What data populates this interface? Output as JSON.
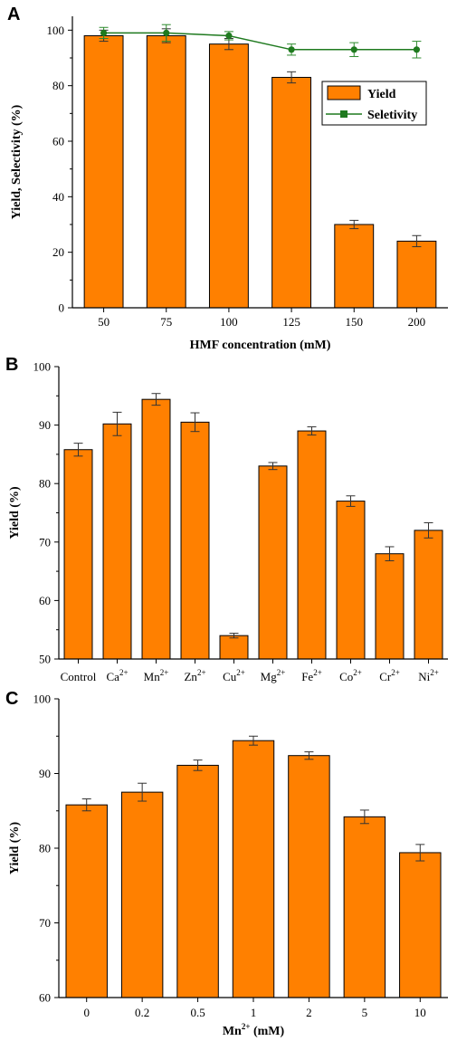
{
  "colors": {
    "bar_fill": "#ff8000",
    "bar_stroke": "#000000",
    "line": "#1f7a1f",
    "error_bar": "#333333",
    "line_error_bar": "#2e8b2e"
  },
  "chart_data": [
    {
      "panel_label": "A",
      "type": "bar",
      "categories": [
        "50",
        "75",
        "100",
        "125",
        "150",
        "200"
      ],
      "series": [
        {
          "name": "Yield",
          "type": "bar",
          "values": [
            98,
            98,
            95,
            83,
            30,
            24
          ],
          "errors": [
            2,
            2.5,
            2,
            2,
            1.5,
            2
          ]
        },
        {
          "name": "Seletivity",
          "type": "line",
          "values": [
            99,
            99,
            98,
            93,
            93,
            93
          ],
          "errors": [
            2,
            3,
            1.5,
            2,
            2.5,
            3
          ]
        }
      ],
      "xlabel": "HMF concentration (mM)",
      "ylabel": "Yield, Selectivity (%)",
      "ylim": [
        0,
        105
      ],
      "yticks": [
        0,
        20,
        40,
        60,
        80,
        100
      ],
      "legend": "right"
    },
    {
      "panel_label": "B",
      "type": "bar",
      "categories": [
        {
          "base": "Control",
          "sup": ""
        },
        {
          "base": "Ca",
          "sup": "2+"
        },
        {
          "base": "Mn",
          "sup": "2+"
        },
        {
          "base": "Zn",
          "sup": "2+"
        },
        {
          "base": "Cu",
          "sup": "2+"
        },
        {
          "base": "Mg",
          "sup": "2+"
        },
        {
          "base": "Fe",
          "sup": "2+"
        },
        {
          "base": "Co",
          "sup": "2+"
        },
        {
          "base": "Cr",
          "sup": "2+"
        },
        {
          "base": "Ni",
          "sup": "2+"
        }
      ],
      "series": [
        {
          "type": "bar",
          "values": [
            85.8,
            90.2,
            94.4,
            90.5,
            54.0,
            83.0,
            89.0,
            77.0,
            68.0,
            72.0
          ],
          "errors": [
            1.1,
            2.0,
            1.0,
            1.6,
            0.4,
            0.6,
            0.7,
            0.9,
            1.2,
            1.3
          ]
        }
      ],
      "xlabel": "",
      "ylabel": "Yield (%)",
      "ylim": [
        50,
        100
      ],
      "yticks": [
        50,
        60,
        70,
        80,
        90,
        100
      ]
    },
    {
      "panel_label": "C",
      "type": "bar",
      "categories": [
        "0",
        "0.2",
        "0.5",
        "1",
        "2",
        "5",
        "10"
      ],
      "series": [
        {
          "type": "bar",
          "values": [
            85.8,
            87.5,
            91.1,
            94.4,
            92.4,
            84.2,
            79.4
          ],
          "errors": [
            0.8,
            1.2,
            0.7,
            0.6,
            0.5,
            0.9,
            1.1
          ]
        }
      ],
      "xlabel": {
        "base": "Mn",
        "sup": "2+",
        "rest": " (mM)"
      },
      "ylabel": "Yield (%)",
      "ylim": [
        60,
        100
      ],
      "yticks": [
        60,
        70,
        80,
        90,
        100
      ]
    }
  ]
}
